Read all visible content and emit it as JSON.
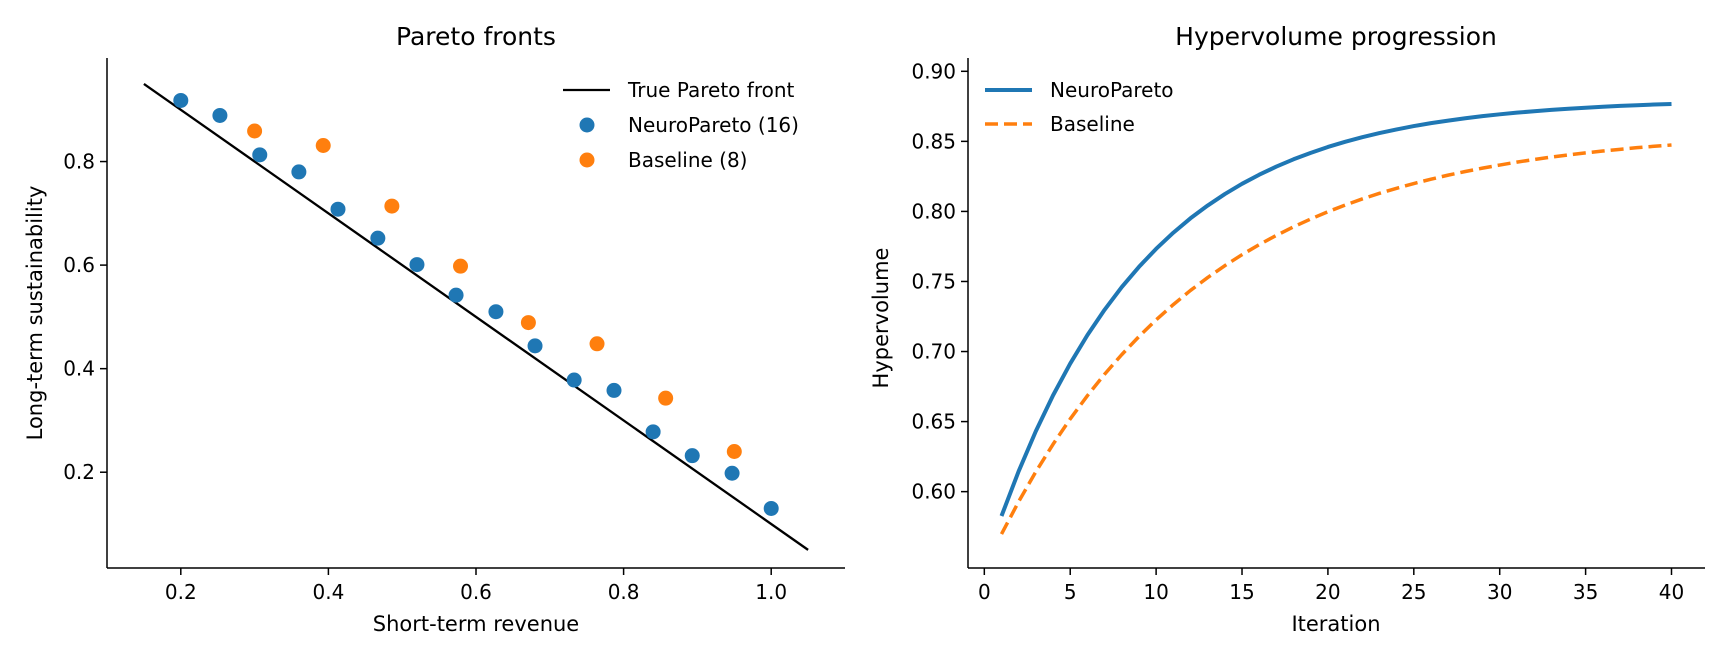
{
  "chart_data": [
    {
      "type": "scatter",
      "title": "Pareto fronts",
      "xlabel": "Short-term revenue",
      "ylabel": "Long-term sustainability",
      "xlim": [
        0.1,
        1.1
      ],
      "ylim": [
        0.015,
        1.0
      ],
      "xticks": [
        0.2,
        0.4,
        0.6,
        0.8,
        1.0
      ],
      "xtick_labels": [
        "0.2",
        "0.4",
        "0.6",
        "0.8",
        "1.0"
      ],
      "yticks": [
        0.2,
        0.4,
        0.6,
        0.8
      ],
      "ytick_labels": [
        "0.2",
        "0.4",
        "0.6",
        "0.8"
      ],
      "legend_position": "top-right",
      "series": [
        {
          "name": "True Pareto front",
          "kind": "line",
          "color": "#000000",
          "x": [
            0.15,
            1.05
          ],
          "y": [
            0.95,
            0.05
          ]
        },
        {
          "name": "NeuroPareto (16)",
          "kind": "scatter",
          "color": "#1f77b4",
          "x": [
            0.2,
            0.253,
            0.307,
            0.36,
            0.413,
            0.467,
            0.52,
            0.573,
            0.627,
            0.68,
            0.733,
            0.787,
            0.84,
            0.893,
            0.947,
            1.0
          ],
          "y": [
            0.918,
            0.889,
            0.813,
            0.78,
            0.708,
            0.652,
            0.601,
            0.542,
            0.51,
            0.444,
            0.378,
            0.358,
            0.278,
            0.232,
            0.198,
            0.13
          ]
        },
        {
          "name": "Baseline (8)",
          "kind": "scatter",
          "color": "#ff7f0e",
          "x": [
            0.3,
            0.393,
            0.486,
            0.579,
            0.671,
            0.764,
            0.857,
            0.95
          ],
          "y": [
            0.859,
            0.831,
            0.714,
            0.598,
            0.489,
            0.448,
            0.343,
            0.24
          ]
        }
      ]
    },
    {
      "type": "line",
      "title": "Hypervolume progression",
      "xlabel": "Iteration",
      "ylabel": "Hypervolume",
      "xlim": [
        -0.95,
        41.95
      ],
      "ylim": [
        0.5455,
        0.9095
      ],
      "xticks": [
        0,
        5,
        10,
        15,
        20,
        25,
        30,
        35,
        40
      ],
      "xtick_labels": [
        "0",
        "5",
        "10",
        "15",
        "20",
        "25",
        "30",
        "35",
        "40"
      ],
      "yticks": [
        0.6,
        0.65,
        0.7,
        0.75,
        0.8,
        0.85,
        0.9
      ],
      "ytick_labels": [
        "0.60",
        "0.65",
        "0.70",
        "0.75",
        "0.80",
        "0.85",
        "0.90"
      ],
      "legend_position": "top-left",
      "x": [
        1,
        2,
        3,
        4,
        5,
        6,
        7,
        8,
        9,
        10,
        11,
        12,
        13,
        14,
        15,
        16,
        17,
        18,
        19,
        20,
        21,
        22,
        23,
        24,
        25,
        26,
        27,
        28,
        29,
        30,
        31,
        32,
        33,
        34,
        35,
        36,
        37,
        38,
        39,
        40
      ],
      "series": [
        {
          "name": "NeuroPareto",
          "color": "#1f77b4",
          "dash": "solid",
          "values": [
            0.5826,
            0.6146,
            0.6432,
            0.6687,
            0.6914,
            0.7117,
            0.7298,
            0.746,
            0.7604,
            0.7733,
            0.7848,
            0.7951,
            0.8042,
            0.8124,
            0.8197,
            0.8262,
            0.832,
            0.8372,
            0.8418,
            0.846,
            0.8497,
            0.853,
            0.8559,
            0.8585,
            0.8609,
            0.863,
            0.8648,
            0.8665,
            0.868,
            0.8693,
            0.8705,
            0.8715,
            0.8725,
            0.8733,
            0.874,
            0.8747,
            0.8753,
            0.8758,
            0.8763,
            0.8767
          ]
        },
        {
          "name": "Baseline",
          "color": "#ff7f0e",
          "dash": "dashed",
          "values": [
            0.5697,
            0.5929,
            0.6142,
            0.6338,
            0.6519,
            0.6685,
            0.6838,
            0.6978,
            0.7107,
            0.7226,
            0.7335,
            0.7436,
            0.7528,
            0.7613,
            0.7691,
            0.7763,
            0.7829,
            0.789,
            0.7946,
            0.7998,
            0.8045,
            0.8089,
            0.8129,
            0.8165,
            0.8199,
            0.823,
            0.8259,
            0.8285,
            0.8309,
            0.8331,
            0.8352,
            0.837,
            0.8388,
            0.8403,
            0.8418,
            0.8431,
            0.8443,
            0.8455,
            0.8465,
            0.8474
          ]
        }
      ]
    }
  ]
}
